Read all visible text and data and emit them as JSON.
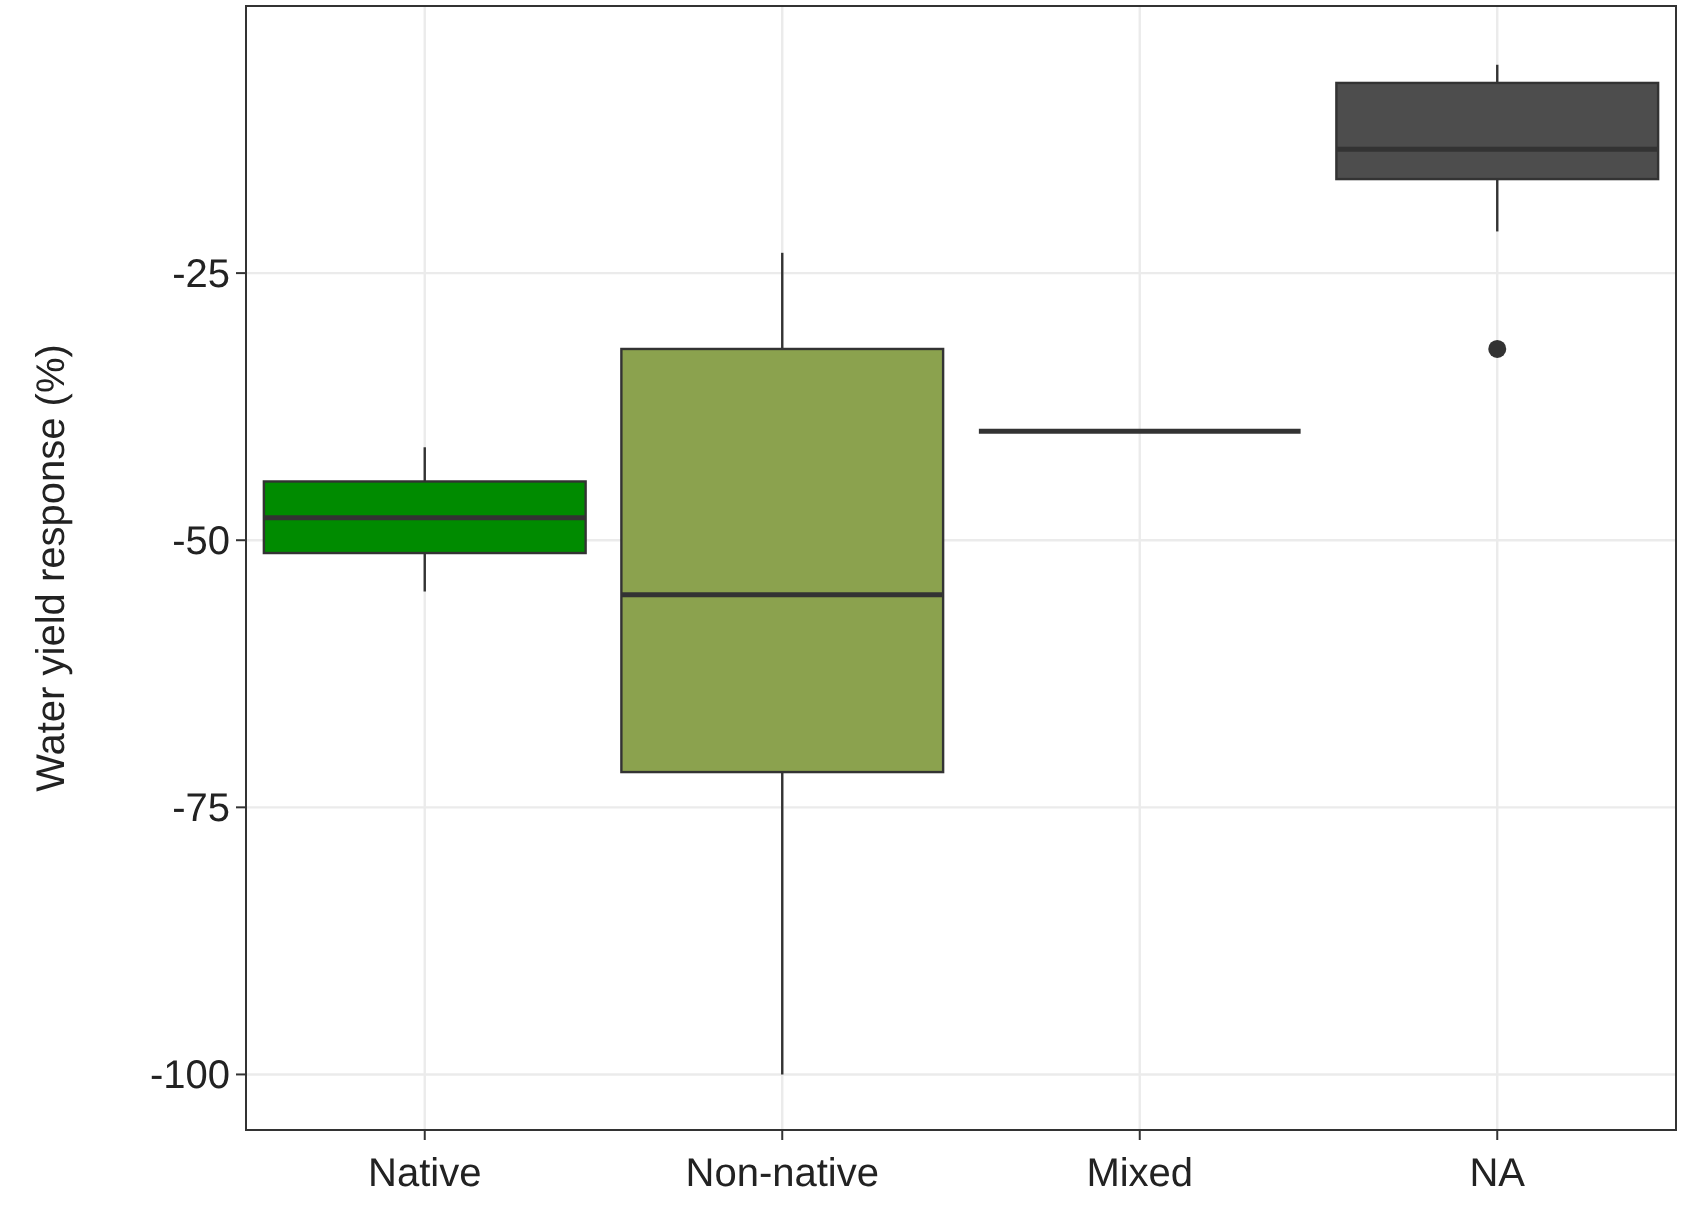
{
  "chart_data": {
    "type": "box",
    "ylabel": "Water yield response (%)",
    "categories": [
      "Native",
      "Non-native",
      "Mixed",
      "NA"
    ],
    "boxes": [
      {
        "low": -54.8,
        "q1": -51.2,
        "median": -47.9,
        "q3": -44.5,
        "high": -41.3
      },
      {
        "low": -100,
        "q1": -71.7,
        "median": -55.1,
        "q3": -32.1,
        "high": -23.1
      },
      {
        "low": -39.8,
        "q1": -39.8,
        "median": -39.8,
        "q3": -39.8,
        "high": -39.8
      },
      {
        "low": -21.1,
        "q1": -16.2,
        "median": -13.4,
        "q3": -7.2,
        "high": -5.5,
        "outliers": [
          -32.1
        ]
      }
    ],
    "colors": [
      "#008b00",
      "#8ba24e",
      null,
      "#4d4d4d"
    ],
    "ylim": [
      -105.2,
      0
    ],
    "yticks": [
      -25,
      -50,
      -75,
      -100
    ],
    "grid": true
  }
}
